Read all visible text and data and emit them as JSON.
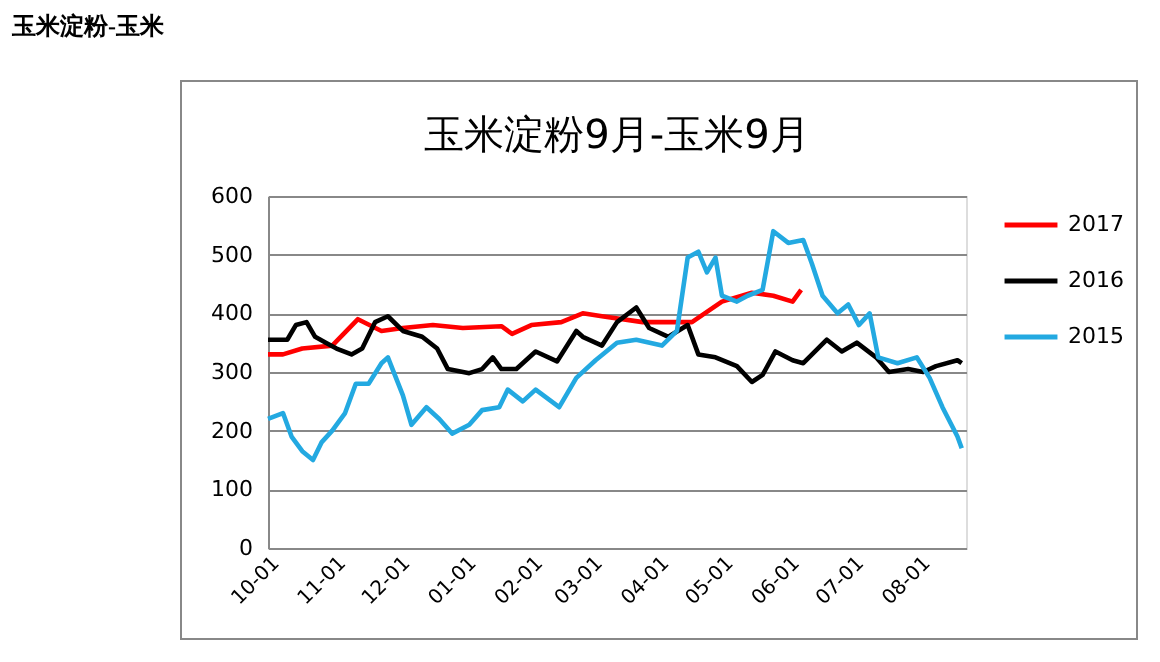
{
  "chart_data": {
    "type": "line",
    "title": "玉米淀粉-玉米",
    "subtitle": "玉米淀粉9月-玉米9月",
    "xlim": [
      "2016-10-01",
      "2017-08-23"
    ],
    "xticks": [
      {
        "value": "2016-10-01",
        "label": "10-01"
      },
      {
        "value": "2016-11-01",
        "label": "11-01"
      },
      {
        "value": "2016-12-01",
        "label": "12-01"
      },
      {
        "value": "2017-01-01",
        "label": "01-01"
      },
      {
        "value": "2017-02-01",
        "label": "02-01"
      },
      {
        "value": "2017-03-01",
        "label": "03-01"
      },
      {
        "value": "2017-04-01",
        "label": "04-01"
      },
      {
        "value": "2017-05-01",
        "label": "05-01"
      },
      {
        "value": "2017-06-01",
        "label": "06-01"
      },
      {
        "value": "2017-07-01",
        "label": "07-01"
      },
      {
        "value": "2017-08-01",
        "label": "08-01"
      }
    ],
    "ylim": [
      0,
      600
    ],
    "yticks": [
      0,
      100,
      200,
      300,
      400,
      500,
      600
    ],
    "grid": "y",
    "legend": "right",
    "series": [
      {
        "name": "2017",
        "color": "#ff0000",
        "x": [
          "2016-10-01",
          "2016-10-08",
          "2016-10-17",
          "2016-10-31",
          "2016-11-12",
          "2016-11-23",
          "2016-12-03",
          "2016-12-17",
          "2016-12-31",
          "2017-01-18",
          "2017-01-23",
          "2017-02-01",
          "2017-02-15",
          "2017-02-25",
          "2017-03-06",
          "2017-03-25",
          "2017-04-17",
          "2017-05-01",
          "2017-05-15",
          "2017-05-25",
          "2017-06-03",
          "2017-06-07"
        ],
        "values": [
          330,
          330,
          340,
          345,
          390,
          370,
          375,
          380,
          375,
          378,
          365,
          380,
          385,
          400,
          395,
          385,
          385,
          420,
          435,
          430,
          420,
          440
        ]
      },
      {
        "name": "2016",
        "color": "#000000",
        "x": [
          "2016-10-01",
          "2016-10-10",
          "2016-10-14",
          "2016-10-19",
          "2016-10-23",
          "2016-10-28",
          "2016-11-02",
          "2016-11-09",
          "2016-11-14",
          "2016-11-20",
          "2016-11-26",
          "2016-12-03",
          "2016-12-12",
          "2016-12-19",
          "2016-12-24",
          "2017-01-03",
          "2017-01-09",
          "2017-01-14",
          "2017-01-18",
          "2017-01-25",
          "2017-02-03",
          "2017-02-13",
          "2017-02-22",
          "2017-02-25",
          "2017-03-06",
          "2017-03-13",
          "2017-03-22",
          "2017-03-28",
          "2017-04-06",
          "2017-04-15",
          "2017-04-20",
          "2017-04-28",
          "2017-05-08",
          "2017-05-15",
          "2017-05-20",
          "2017-05-26",
          "2017-06-03",
          "2017-06-08",
          "2017-06-19",
          "2017-06-26",
          "2017-07-03",
          "2017-07-12",
          "2017-07-18",
          "2017-07-27",
          "2017-08-03",
          "2017-08-09",
          "2017-08-19",
          "2017-08-21"
        ],
        "values": [
          355,
          355,
          380,
          385,
          360,
          350,
          340,
          330,
          340,
          385,
          395,
          370,
          360,
          340,
          305,
          298,
          305,
          325,
          305,
          305,
          335,
          318,
          370,
          360,
          345,
          385,
          410,
          375,
          360,
          380,
          330,
          325,
          310,
          283,
          295,
          335,
          320,
          315,
          355,
          335,
          350,
          325,
          300,
          305,
          300,
          310,
          320,
          315
        ]
      },
      {
        "name": "2015",
        "color": "#23a9e1",
        "x": [
          "2016-10-01",
          "2016-10-08",
          "2016-10-12",
          "2016-10-17",
          "2016-10-22",
          "2016-10-26",
          "2016-10-31",
          "2016-11-06",
          "2016-11-11",
          "2016-11-17",
          "2016-11-23",
          "2016-11-26",
          "2016-12-03",
          "2016-12-07",
          "2016-12-14",
          "2016-12-20",
          "2016-12-26",
          "2017-01-03",
          "2017-01-09",
          "2017-01-17",
          "2017-01-21",
          "2017-01-28",
          "2017-02-03",
          "2017-02-14",
          "2017-02-22",
          "2017-03-03",
          "2017-03-13",
          "2017-03-22",
          "2017-04-03",
          "2017-04-10",
          "2017-04-15",
          "2017-04-20",
          "2017-04-24",
          "2017-04-28",
          "2017-05-01",
          "2017-05-08",
          "2017-05-13",
          "2017-05-20",
          "2017-05-25",
          "2017-06-01",
          "2017-06-08",
          "2017-06-12",
          "2017-06-17",
          "2017-06-24",
          "2017-06-29",
          "2017-07-04",
          "2017-07-09",
          "2017-07-13",
          "2017-07-22",
          "2017-07-31",
          "2017-08-06",
          "2017-08-12",
          "2017-08-19",
          "2017-08-21"
        ],
        "values": [
          220,
          230,
          190,
          165,
          150,
          180,
          200,
          230,
          280,
          280,
          315,
          325,
          260,
          210,
          240,
          220,
          195,
          210,
          235,
          240,
          270,
          250,
          270,
          240,
          290,
          320,
          350,
          355,
          345,
          370,
          495,
          505,
          470,
          495,
          430,
          420,
          430,
          440,
          540,
          520,
          525,
          485,
          430,
          400,
          415,
          380,
          400,
          325,
          315,
          325,
          290,
          240,
          190,
          170
        ]
      }
    ]
  }
}
